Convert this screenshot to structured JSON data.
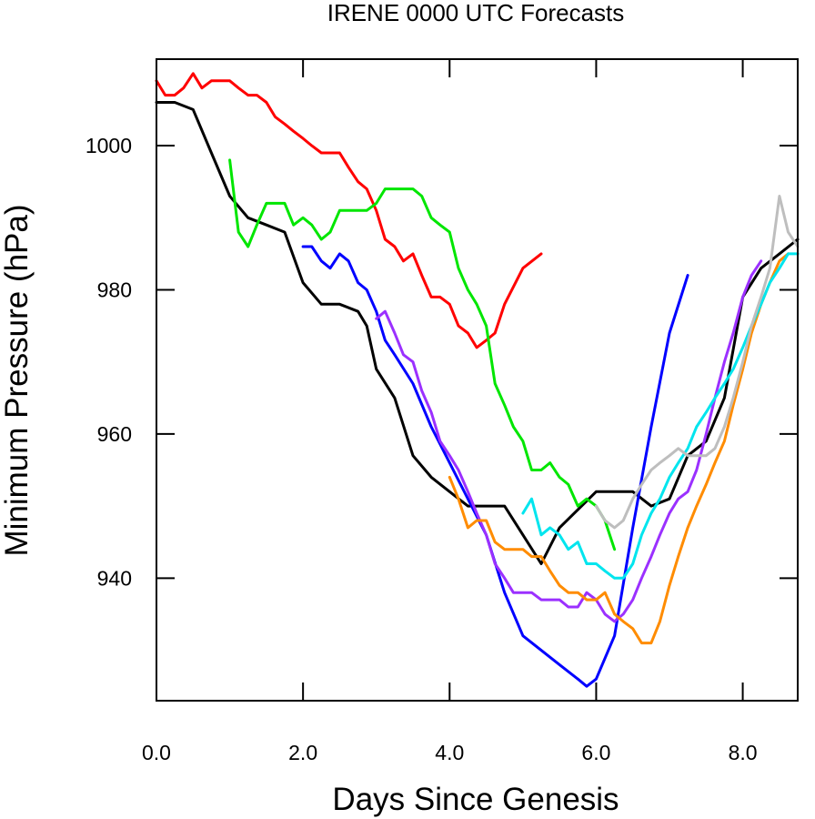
{
  "chart_data": {
    "type": "line",
    "title": "IRENE 0000 UTC Forecasts",
    "xlabel": "Days Since Genesis",
    "ylabel": "Minimum Pressure (hPa)",
    "xlim": [
      0,
      8.75
    ],
    "ylim": [
      923,
      1012
    ],
    "x_ticks": [
      0,
      2,
      4,
      6,
      8
    ],
    "x_tick_labels": [
      "0.0",
      "2.0",
      "4.0",
      "6.0",
      "8.0"
    ],
    "y_ticks": [
      940,
      960,
      980,
      1000
    ],
    "y_tick_labels": [
      "940",
      "960",
      "980",
      "1000"
    ],
    "grid": false,
    "legend": "none",
    "series": [
      {
        "color": "#ff0000",
        "points": [
          [
            0,
            1009
          ],
          [
            0.12,
            1007
          ],
          [
            0.25,
            1007
          ],
          [
            0.37,
            1008
          ],
          [
            0.5,
            1010
          ],
          [
            0.62,
            1008
          ],
          [
            0.75,
            1009
          ],
          [
            1.0,
            1009
          ],
          [
            1.12,
            1008
          ],
          [
            1.25,
            1007
          ],
          [
            1.37,
            1007
          ],
          [
            1.5,
            1006
          ],
          [
            1.62,
            1004
          ],
          [
            1.75,
            1003
          ],
          [
            1.87,
            1002
          ],
          [
            2.0,
            1001
          ],
          [
            2.12,
            1000
          ],
          [
            2.25,
            999
          ],
          [
            2.5,
            999
          ],
          [
            2.62,
            997
          ],
          [
            2.75,
            995
          ],
          [
            2.87,
            994
          ],
          [
            3.0,
            991
          ],
          [
            3.12,
            987
          ],
          [
            3.25,
            986
          ],
          [
            3.37,
            984
          ],
          [
            3.5,
            985
          ],
          [
            3.62,
            982
          ],
          [
            3.75,
            979
          ],
          [
            3.87,
            979
          ],
          [
            4.0,
            978
          ],
          [
            4.12,
            975
          ],
          [
            4.25,
            974
          ],
          [
            4.37,
            972
          ],
          [
            4.5,
            973
          ],
          [
            4.62,
            974
          ],
          [
            4.75,
            978
          ],
          [
            5.0,
            983
          ],
          [
            5.25,
            985
          ]
        ]
      },
      {
        "color": "#000000",
        "points": [
          [
            0,
            1006
          ],
          [
            0.25,
            1006
          ],
          [
            0.5,
            1005
          ],
          [
            0.75,
            999
          ],
          [
            1.0,
            993
          ],
          [
            1.25,
            990
          ],
          [
            1.5,
            989
          ],
          [
            1.75,
            988
          ],
          [
            2.0,
            981
          ],
          [
            2.25,
            978
          ],
          [
            2.5,
            978
          ],
          [
            2.75,
            977
          ],
          [
            2.87,
            975
          ],
          [
            3.0,
            969
          ],
          [
            3.25,
            965
          ],
          [
            3.5,
            957
          ],
          [
            3.75,
            954
          ],
          [
            4.0,
            952
          ],
          [
            4.25,
            950
          ],
          [
            4.5,
            950
          ],
          [
            4.75,
            950
          ],
          [
            5.0,
            946
          ],
          [
            5.25,
            942
          ],
          [
            5.5,
            947
          ],
          [
            6.0,
            952
          ],
          [
            6.5,
            952
          ],
          [
            6.75,
            950
          ],
          [
            7.0,
            951
          ],
          [
            7.25,
            957
          ],
          [
            7.5,
            959
          ],
          [
            7.75,
            965
          ],
          [
            8.0,
            979
          ],
          [
            8.25,
            983
          ],
          [
            8.5,
            985
          ],
          [
            8.75,
            987
          ]
        ]
      },
      {
        "color": "#00e600",
        "points": [
          [
            1.0,
            998
          ],
          [
            1.12,
            988
          ],
          [
            1.25,
            986
          ],
          [
            1.37,
            989
          ],
          [
            1.5,
            992
          ],
          [
            1.62,
            992
          ],
          [
            1.75,
            992
          ],
          [
            1.87,
            989
          ],
          [
            2.0,
            990
          ],
          [
            2.12,
            989
          ],
          [
            2.25,
            987
          ],
          [
            2.37,
            988
          ],
          [
            2.5,
            991
          ],
          [
            2.62,
            991
          ],
          [
            2.75,
            991
          ],
          [
            2.87,
            991
          ],
          [
            3.0,
            992
          ],
          [
            3.12,
            994
          ],
          [
            3.25,
            994
          ],
          [
            3.37,
            994
          ],
          [
            3.5,
            994
          ],
          [
            3.62,
            993
          ],
          [
            3.75,
            990
          ],
          [
            3.87,
            989
          ],
          [
            4.0,
            988
          ],
          [
            4.12,
            983
          ],
          [
            4.25,
            980
          ],
          [
            4.37,
            978
          ],
          [
            4.5,
            975
          ],
          [
            4.62,
            967
          ],
          [
            4.75,
            964
          ],
          [
            4.87,
            961
          ],
          [
            5.0,
            959
          ],
          [
            5.12,
            955
          ],
          [
            5.25,
            955
          ],
          [
            5.37,
            956
          ],
          [
            5.5,
            954
          ],
          [
            5.62,
            953
          ],
          [
            5.75,
            950
          ],
          [
            5.87,
            951
          ],
          [
            6.0,
            950
          ],
          [
            6.12,
            948
          ],
          [
            6.25,
            944
          ]
        ]
      },
      {
        "color": "#0000ff",
        "points": [
          [
            2.0,
            986
          ],
          [
            2.12,
            986
          ],
          [
            2.25,
            984
          ],
          [
            2.37,
            983
          ],
          [
            2.5,
            985
          ],
          [
            2.62,
            984
          ],
          [
            2.75,
            981
          ],
          [
            2.87,
            980
          ],
          [
            3.0,
            977
          ],
          [
            3.12,
            973
          ],
          [
            3.25,
            971
          ],
          [
            3.5,
            967
          ],
          [
            3.75,
            961
          ],
          [
            4.0,
            956
          ],
          [
            4.25,
            951
          ],
          [
            4.5,
            946
          ],
          [
            4.75,
            938
          ],
          [
            5.0,
            932
          ],
          [
            5.25,
            930
          ],
          [
            5.5,
            928
          ],
          [
            5.75,
            926
          ],
          [
            5.87,
            925
          ],
          [
            6.0,
            926
          ],
          [
            6.25,
            932
          ],
          [
            6.5,
            947
          ],
          [
            6.75,
            961
          ],
          [
            7.0,
            974
          ],
          [
            7.25,
            982
          ]
        ]
      },
      {
        "color": "#9b30ff",
        "points": [
          [
            3.0,
            976
          ],
          [
            3.12,
            977
          ],
          [
            3.25,
            974
          ],
          [
            3.37,
            971
          ],
          [
            3.5,
            970
          ],
          [
            3.62,
            966
          ],
          [
            3.75,
            963
          ],
          [
            3.87,
            959
          ],
          [
            4.0,
            957
          ],
          [
            4.12,
            955
          ],
          [
            4.25,
            952
          ],
          [
            4.37,
            949
          ],
          [
            4.5,
            946
          ],
          [
            4.62,
            942
          ],
          [
            4.75,
            940
          ],
          [
            4.87,
            938
          ],
          [
            5.0,
            938
          ],
          [
            5.12,
            938
          ],
          [
            5.25,
            937
          ],
          [
            5.37,
            937
          ],
          [
            5.5,
            937
          ],
          [
            5.62,
            936
          ],
          [
            5.75,
            936
          ],
          [
            5.87,
            938
          ],
          [
            6.0,
            937
          ],
          [
            6.12,
            935
          ],
          [
            6.25,
            934
          ],
          [
            6.37,
            935
          ],
          [
            6.5,
            937
          ],
          [
            6.62,
            940
          ],
          [
            6.75,
            943
          ],
          [
            6.87,
            946
          ],
          [
            7.0,
            949
          ],
          [
            7.12,
            951
          ],
          [
            7.25,
            952
          ],
          [
            7.37,
            955
          ],
          [
            7.5,
            960
          ],
          [
            7.62,
            965
          ],
          [
            7.75,
            970
          ],
          [
            7.87,
            974
          ],
          [
            8.0,
            979
          ],
          [
            8.12,
            982
          ],
          [
            8.25,
            984
          ]
        ]
      },
      {
        "color": "#ff8c00",
        "points": [
          [
            4.0,
            954
          ],
          [
            4.12,
            951
          ],
          [
            4.25,
            947
          ],
          [
            4.37,
            948
          ],
          [
            4.5,
            948
          ],
          [
            4.62,
            945
          ],
          [
            4.75,
            944
          ],
          [
            4.87,
            944
          ],
          [
            5.0,
            944
          ],
          [
            5.12,
            943
          ],
          [
            5.25,
            943
          ],
          [
            5.37,
            941
          ],
          [
            5.5,
            939
          ],
          [
            5.62,
            938
          ],
          [
            5.75,
            938
          ],
          [
            5.87,
            937
          ],
          [
            6.0,
            937
          ],
          [
            6.12,
            938
          ],
          [
            6.25,
            935
          ],
          [
            6.37,
            934
          ],
          [
            6.5,
            933
          ],
          [
            6.62,
            931
          ],
          [
            6.75,
            931
          ],
          [
            6.87,
            934
          ],
          [
            7.0,
            939
          ],
          [
            7.12,
            943
          ],
          [
            7.25,
            947
          ],
          [
            7.37,
            950
          ],
          [
            7.5,
            953
          ],
          [
            7.62,
            956
          ],
          [
            7.75,
            959
          ],
          [
            7.87,
            964
          ],
          [
            8.0,
            969
          ],
          [
            8.12,
            974
          ],
          [
            8.25,
            978
          ],
          [
            8.37,
            981
          ],
          [
            8.5,
            984
          ],
          [
            8.62,
            985
          ]
        ]
      },
      {
        "color": "#00e5ee",
        "points": [
          [
            5.0,
            949
          ],
          [
            5.12,
            951
          ],
          [
            5.25,
            946
          ],
          [
            5.37,
            947
          ],
          [
            5.5,
            946
          ],
          [
            5.62,
            944
          ],
          [
            5.75,
            945
          ],
          [
            5.87,
            942
          ],
          [
            6.0,
            942
          ],
          [
            6.12,
            941
          ],
          [
            6.25,
            940
          ],
          [
            6.37,
            940
          ],
          [
            6.5,
            942
          ],
          [
            6.62,
            946
          ],
          [
            6.75,
            949
          ],
          [
            6.87,
            951
          ],
          [
            7.0,
            954
          ],
          [
            7.12,
            956
          ],
          [
            7.25,
            958
          ],
          [
            7.37,
            961
          ],
          [
            7.5,
            963
          ],
          [
            7.62,
            965
          ],
          [
            7.75,
            967
          ],
          [
            7.87,
            969
          ],
          [
            8.0,
            972
          ],
          [
            8.12,
            975
          ],
          [
            8.25,
            978
          ],
          [
            8.37,
            981
          ],
          [
            8.5,
            983
          ],
          [
            8.62,
            985
          ],
          [
            8.75,
            985
          ]
        ]
      },
      {
        "color": "#bebebe",
        "points": [
          [
            6.0,
            950
          ],
          [
            6.12,
            948
          ],
          [
            6.25,
            947
          ],
          [
            6.37,
            948
          ],
          [
            6.5,
            951
          ],
          [
            6.62,
            953
          ],
          [
            6.75,
            955
          ],
          [
            6.87,
            956
          ],
          [
            7.0,
            957
          ],
          [
            7.12,
            958
          ],
          [
            7.25,
            957
          ],
          [
            7.37,
            957
          ],
          [
            7.5,
            957
          ],
          [
            7.62,
            958
          ],
          [
            7.75,
            961
          ],
          [
            7.87,
            965
          ],
          [
            8.0,
            970
          ],
          [
            8.12,
            975
          ],
          [
            8.25,
            979
          ],
          [
            8.37,
            983
          ],
          [
            8.5,
            993
          ],
          [
            8.62,
            988
          ],
          [
            8.75,
            986
          ]
        ]
      }
    ]
  }
}
